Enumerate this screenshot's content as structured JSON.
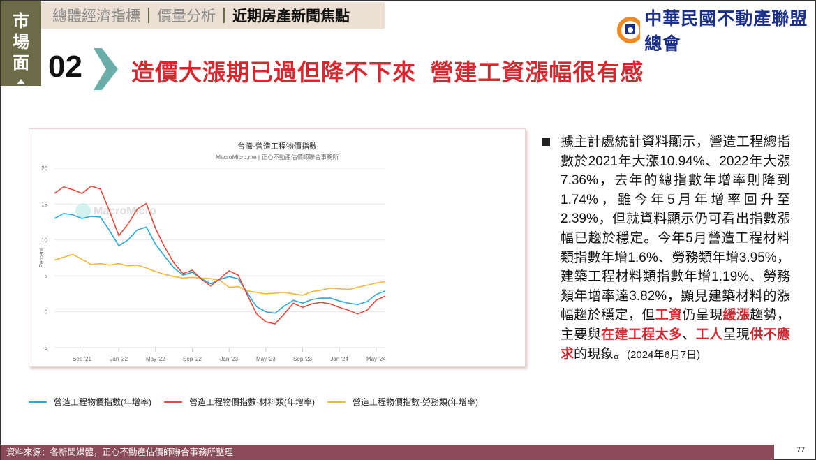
{
  "side_tab": {
    "label": [
      "市",
      "場",
      "面"
    ]
  },
  "nav": {
    "items": [
      "總體經濟指標",
      "價量分析",
      "近期房產新聞焦點"
    ],
    "active_index": 2
  },
  "header": {
    "number": "02",
    "title": "造價大漲期已過但降不下來  營建工資漲幅很有感"
  },
  "logo": {
    "name": "中華民國不動產聯盟總會"
  },
  "colors": {
    "accent": "#d8282f",
    "side": "#6b6b47",
    "footer": "#8a4a58",
    "chevron": "#6aaeaa",
    "blue": "#29a8d9",
    "red": "#e8483a",
    "yellow": "#f4b63a"
  },
  "chart_data": {
    "type": "line",
    "title": "台灣-營造工程物價指數",
    "subtitle": "MacroMicro.me | 正心不動產估價師聯合事務所",
    "watermark": "MacroMicro",
    "ylabel": "Percent",
    "ylim": [
      -5,
      20
    ],
    "yticks": [
      20,
      15,
      10,
      5,
      0,
      -5
    ],
    "x_start": "2021-06",
    "x_end": "2024-06",
    "xtick_labels": [
      "Sep '21",
      "Jan '22",
      "May '22",
      "Sep '22",
      "Jan '23",
      "May '23",
      "Sep '23",
      "Jan '24",
      "May '24"
    ],
    "xtick_index": [
      3,
      7,
      11,
      15,
      19,
      23,
      27,
      31,
      35
    ],
    "series": [
      {
        "name": "營造工程物價指數(年增率)",
        "color": "#29a8d9",
        "values": [
          13.0,
          13.7,
          13.5,
          13.0,
          13.3,
          13.2,
          11.3,
          9.2,
          10.0,
          11.4,
          11.8,
          9.4,
          7.7,
          6.1,
          5.1,
          5.5,
          4.6,
          3.9,
          4.5,
          4.9,
          4.6,
          2.6,
          0.7,
          0.0,
          -0.2,
          0.8,
          1.6,
          1.2,
          1.7,
          1.9,
          1.9,
          1.5,
          1.2,
          1.0,
          1.4,
          2.4,
          2.9
        ]
      },
      {
        "name": "營造工程物價指數-材料類(年增率)",
        "color": "#e8483a",
        "values": [
          16.5,
          17.4,
          17.0,
          16.5,
          17.5,
          17.1,
          14.0,
          10.6,
          12.2,
          14.3,
          15.1,
          11.6,
          9.0,
          6.8,
          5.3,
          5.8,
          4.5,
          3.6,
          4.6,
          5.7,
          5.1,
          2.3,
          -0.3,
          -1.4,
          -1.7,
          -0.3,
          1.2,
          0.6,
          1.1,
          1.3,
          1.1,
          0.6,
          0.2,
          -0.3,
          0.2,
          1.6,
          2.2
        ]
      },
      {
        "name": "營造工程物價指數-勞務類(年增率)",
        "color": "#f4b63a",
        "values": [
          7.2,
          7.6,
          8.0,
          7.3,
          6.6,
          6.7,
          6.5,
          6.7,
          6.4,
          6.5,
          6.1,
          5.6,
          5.2,
          4.9,
          4.7,
          4.8,
          4.7,
          4.6,
          4.4,
          3.4,
          3.5,
          2.9,
          2.7,
          2.5,
          2.6,
          2.7,
          2.5,
          2.3,
          2.8,
          3.0,
          3.3,
          3.2,
          3.1,
          3.4,
          3.7,
          4.0,
          4.2
        ]
      }
    ],
    "legend": "bottom",
    "grid": true
  },
  "body": {
    "segments": [
      {
        "t": "據主計處統計資料顯示，營造工程總指數於2021年大漲10.94%、2022年大漲7.36%，去年的總指數年增率則降到1.74%，雖今年5月年增率回升至2.39%，但就資料顯示仍可看出指數漲幅已趨於穩定。今年5月營造工程材料類指數年增1.6%、勞務類年增3.95%，建築工程材料類指數年增1.19%、勞務類年增率達3.82%，顯見建築材料的漲幅趨於穩定，但",
        "s": ""
      },
      {
        "t": "工資",
        "s": "hl"
      },
      {
        "t": "仍呈現",
        "s": ""
      },
      {
        "t": "緩漲",
        "s": "hl"
      },
      {
        "t": "趨勢，主要與",
        "s": ""
      },
      {
        "t": "在建工程太多",
        "s": "hl"
      },
      {
        "t": "、",
        "s": ""
      },
      {
        "t": "工人",
        "s": "hl"
      },
      {
        "t": "呈現",
        "s": ""
      },
      {
        "t": "供不應求",
        "s": "hl"
      },
      {
        "t": "的現象。",
        "s": ""
      },
      {
        "t": "(2024年6月7日)",
        "s": "small"
      }
    ]
  },
  "footer": {
    "source": "資料來源：各新聞媒體，正心不動產估價師聯合事務所整理",
    "page": "77"
  }
}
